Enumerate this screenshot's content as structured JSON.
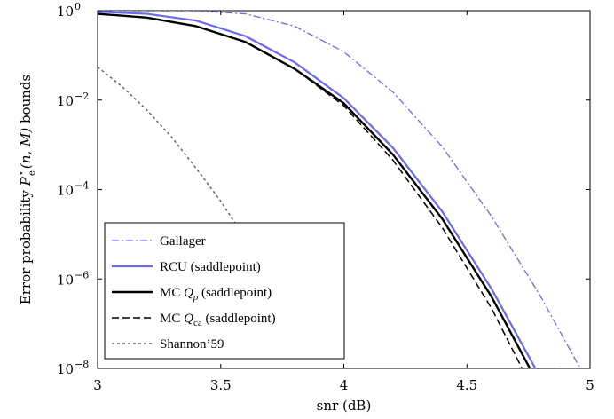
{
  "chart_data": {
    "type": "line",
    "xlabel": "snr (dB)",
    "ylabel": "Error probability P_e*(n, M) bounds",
    "ylabel_parts": {
      "prefix": "Error probability ",
      "symbol": "P",
      "sub": "e",
      "sup": "⋆",
      "args": "(n, M)",
      "suffix": " bounds"
    },
    "xlim": [
      3,
      5
    ],
    "ylim": [
      1e-08,
      1
    ],
    "yscale": "log",
    "grid": false,
    "legend_position": "bottom-left",
    "x_ticks": [
      {
        "value": 3,
        "label": "3"
      },
      {
        "value": 3.5,
        "label": "3.5"
      },
      {
        "value": 4,
        "label": "4"
      },
      {
        "value": 4.5,
        "label": "4.5"
      },
      {
        "value": 5,
        "label": "5"
      }
    ],
    "y_ticks": [
      {
        "value": 1,
        "base": "10",
        "exp": "0"
      },
      {
        "value": 0.01,
        "base": "10",
        "exp": "−2"
      },
      {
        "value": 0.0001,
        "base": "10",
        "exp": "−4"
      },
      {
        "value": 1e-06,
        "base": "10",
        "exp": "−6"
      },
      {
        "value": 1e-08,
        "base": "10",
        "exp": "−8"
      }
    ],
    "series": [
      {
        "name": "Gallager",
        "legend_parts": [
          "Gallager"
        ],
        "color": "#6a6af0",
        "dash": "dashdot",
        "width": 1.3,
        "x": [
          3.0,
          3.4,
          3.6,
          3.8,
          4.0,
          4.2,
          4.4,
          4.6,
          4.8,
          5.0
        ],
        "y": [
          1.0,
          1.0,
          0.85,
          0.45,
          0.12,
          0.015,
          0.0009,
          2.5e-05,
          4e-07,
          4e-09
        ]
      },
      {
        "name": "RCU (saddlepoint)",
        "legend_parts": [
          "RCU (saddlepoint)"
        ],
        "color": "#6a6af0",
        "dash": "solid",
        "width": 2.2,
        "x": [
          3.0,
          3.2,
          3.4,
          3.6,
          3.8,
          4.0,
          4.2,
          4.4,
          4.6,
          4.8,
          4.88
        ],
        "y": [
          0.95,
          0.85,
          0.6,
          0.27,
          0.07,
          0.011,
          0.00085,
          3.2e-05,
          6e-07,
          6e-09,
          1e-08
        ]
      },
      {
        "name": "MC Q_rho (saddlepoint)",
        "legend_parts": [
          "MC ",
          "Q",
          "ρ",
          " (saddlepoint)"
        ],
        "color": "#000000",
        "dash": "solid",
        "width": 2.4,
        "x": [
          3.0,
          3.2,
          3.4,
          3.6,
          3.8,
          4.0,
          4.2,
          4.4,
          4.6,
          4.8,
          4.86
        ],
        "y": [
          0.85,
          0.7,
          0.45,
          0.2,
          0.05,
          0.0085,
          0.0006,
          2.2e-05,
          4e-07,
          3.5e-09,
          1e-08
        ]
      },
      {
        "name": "MC Q_ca (saddlepoint)",
        "legend_parts": [
          "MC ",
          "Q",
          "ca",
          " (saddlepoint)"
        ],
        "color": "#000000",
        "dash": "dashed",
        "width": 1.5,
        "x": [
          3.0,
          3.2,
          3.4,
          3.6,
          3.8,
          4.0,
          4.2,
          4.4,
          4.6,
          4.8,
          4.82
        ],
        "y": [
          0.85,
          0.7,
          0.45,
          0.2,
          0.05,
          0.0075,
          0.00045,
          1.4e-05,
          2.2e-07,
          1.5e-09,
          1e-08
        ]
      },
      {
        "name": "Shannon'59",
        "legend_parts": [
          "Shannon’59"
        ],
        "color": "#666666",
        "dash": "dotted",
        "width": 1.5,
        "x": [
          3.0,
          3.1,
          3.2,
          3.3,
          3.4,
          3.5,
          3.6,
          3.7,
          3.75
        ],
        "y": [
          0.055,
          0.02,
          0.006,
          0.0015,
          0.0003,
          5.5e-05,
          8e-06,
          1e-06,
          3.5e-07
        ]
      }
    ]
  }
}
